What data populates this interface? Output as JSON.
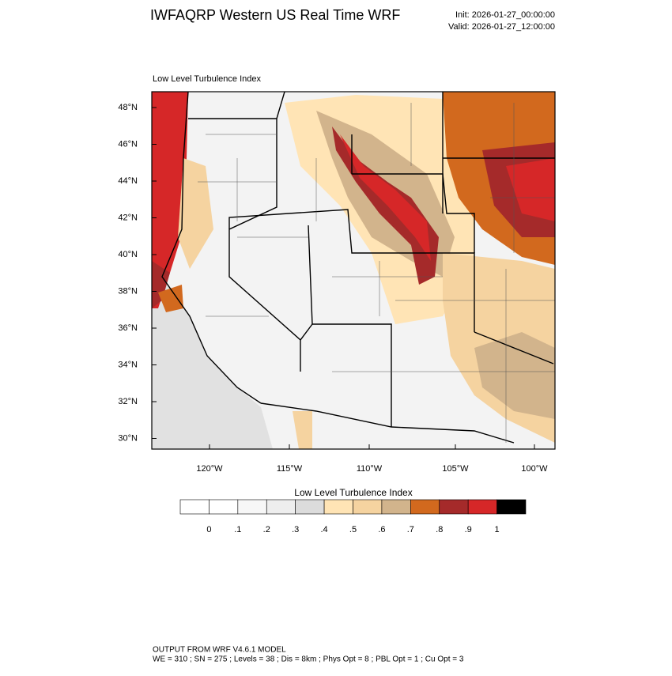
{
  "header": {
    "title": "IWFAQRP Western US Real Time WRF",
    "init": "Init: 2026-01-27_00:00:00",
    "valid": "Valid: 2026-01-27_12:00:00"
  },
  "map": {
    "subtitle": "Low Level Turbulence Index",
    "lat_labels": [
      "48°N",
      "46°N",
      "44°N",
      "42°N",
      "40°N",
      "38°N",
      "36°N",
      "34°N",
      "32°N",
      "30°N"
    ],
    "lon_labels": [
      "120°W",
      "115°W",
      "110°W",
      "105°W",
      "100°W"
    ]
  },
  "colorbar": {
    "title": "Low Level Turbulence Index",
    "labels": [
      "0",
      ".1",
      ".2",
      ".3",
      ".4",
      ".5",
      ".6",
      ".7",
      ".8",
      ".9",
      "1"
    ],
    "colors": [
      "#ffffff",
      "#f7f7f7",
      "#eeeeee",
      "#dcdcdc",
      "#ffe4b5",
      "#f5d3a0",
      "#d2b48c",
      "#d2691e",
      "#a52a2a",
      "#d62728",
      "#000000"
    ]
  },
  "footer": {
    "line1": "OUTPUT FROM WRF V4.6.1 MODEL",
    "line2": "WE = 310 ; SN = 275 ; Levels = 38 ; Dis = 8km ; Phys Opt = 8 ; PBL Opt = 1 ; Cu Opt = 3"
  }
}
